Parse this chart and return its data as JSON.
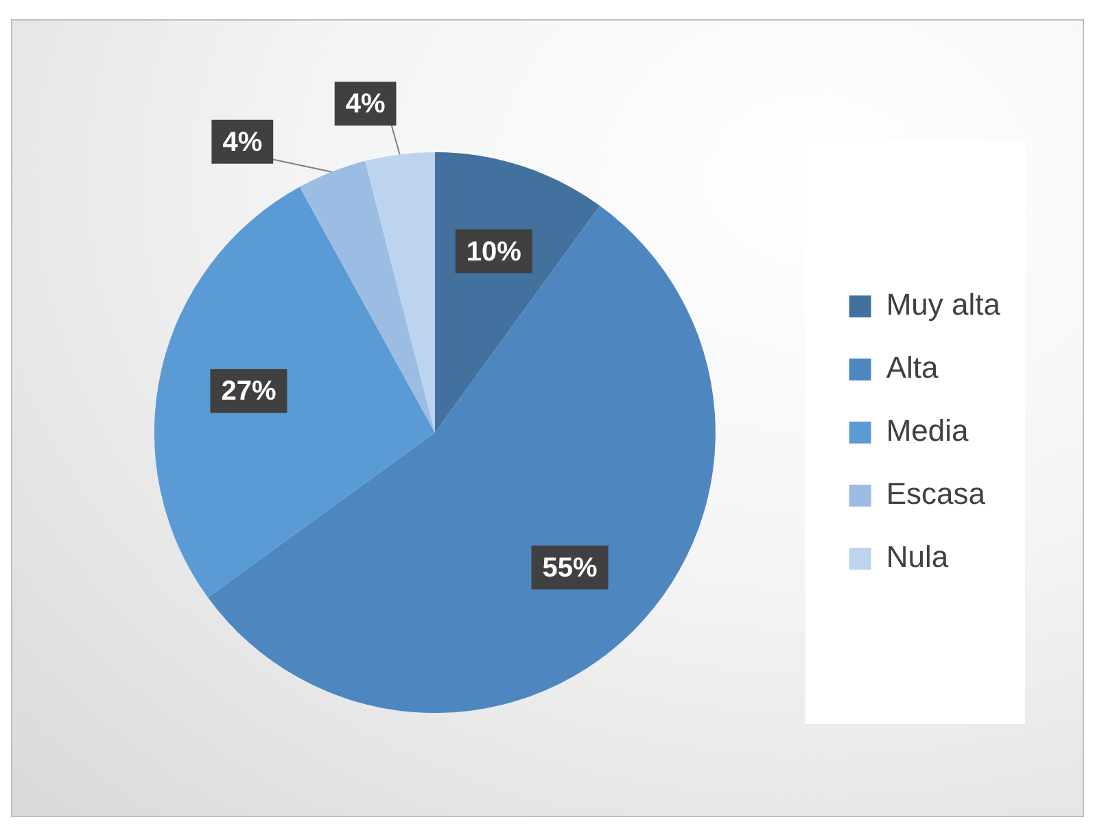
{
  "chart_data": {
    "type": "pie",
    "categories": [
      "Muy alta",
      "Alta",
      "Media",
      "Escasa",
      "Nula"
    ],
    "values": [
      10,
      55,
      27,
      4,
      4
    ],
    "colors": [
      "#41719c",
      "#4e87c0",
      "#5b9bd5",
      "#9cbde3",
      "#bdd4ee"
    ],
    "value_labels": [
      "10%",
      "55%",
      "27%",
      "4%",
      "4%"
    ],
    "legend": "right"
  }
}
